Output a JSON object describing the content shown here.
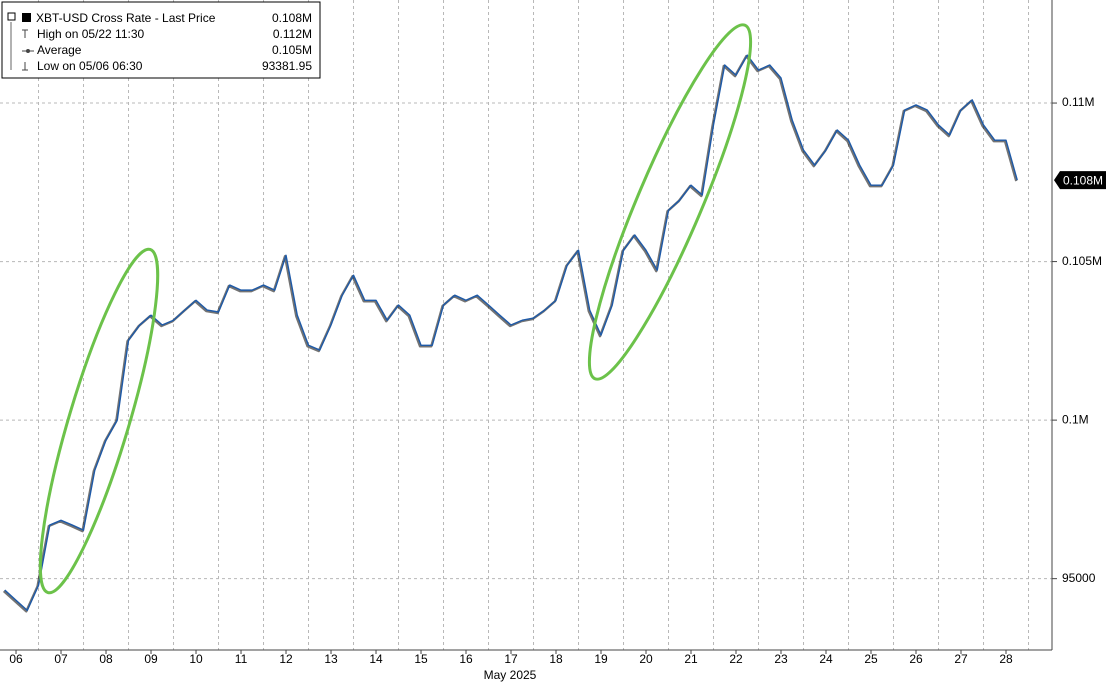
{
  "chart_data": {
    "type": "line",
    "x_label": "May 2025",
    "x": [
      6.25,
      6.5,
      6.75,
      7,
      7.25,
      7.5,
      7.75,
      8,
      8.25,
      8.5,
      8.75,
      9,
      9.25,
      9.5,
      9.75,
      10,
      10.25,
      10.5,
      10.75,
      11,
      11.25,
      11.5,
      11.75,
      12,
      12.25,
      12.5,
      12.75,
      13,
      13.25,
      13.5,
      13.75,
      14,
      14.25,
      14.5,
      14.75,
      15,
      15.25,
      15.5,
      15.75,
      16,
      16.25,
      16.5,
      16.75,
      17,
      17.25,
      17.5,
      17.75,
      18,
      18.25,
      18.5,
      18.75,
      19,
      19.25,
      19.5,
      19.75,
      20,
      20.25,
      20.5,
      20.75,
      21,
      21.25,
      21.5,
      21.75,
      22,
      22.25,
      22.5,
      22.75,
      23,
      23.25,
      23.5,
      23.75,
      24,
      24.25,
      24.5,
      24.75,
      25,
      25.25,
      25.5,
      25.75,
      26,
      26.25,
      26.5,
      26.75,
      27,
      27.25,
      27.5,
      27.75,
      28,
      28.25,
      28.5,
      28.75
    ],
    "series": [
      {
        "name": "XBT-USD Cross Rate - Last Price",
        "color": "#1e5aa8",
        "values": [
          94640,
          94320,
          94000,
          94790,
          96690,
          96840,
          96690,
          96530,
          98420,
          99370,
          100000,
          102520,
          103000,
          103310,
          103000,
          103150,
          103470,
          103780,
          103470,
          103410,
          104260,
          104100,
          104100,
          104260,
          104100,
          105200,
          103310,
          102360,
          102210,
          103000,
          103940,
          104570,
          103780,
          103780,
          103150,
          103630,
          103310,
          102360,
          102360,
          103630,
          103940,
          103780,
          103940,
          103630,
          103310,
          103000,
          103150,
          103220,
          103470,
          103780,
          104890,
          105360,
          103470,
          102680,
          103630,
          105360,
          105840,
          105360,
          104730,
          106620,
          106940,
          107410,
          107100,
          109310,
          111200,
          110880,
          111510,
          111040,
          111200,
          110790,
          109460,
          108520,
          108040,
          108520,
          109150,
          108830,
          108040,
          107410,
          107410,
          108040,
          109780,
          109940,
          109780,
          109310,
          108990,
          109780,
          110100,
          109310,
          108830,
          108830,
          107570
        ]
      }
    ],
    "stats": [
      {
        "label": "High on 05/22 11:30",
        "value": "0.112M"
      },
      {
        "label": "Average",
        "value": "0.105M"
      },
      {
        "label": "Low on 05/06 06:30",
        "value": 93381.95
      }
    ],
    "price_tag": {
      "value": 107570,
      "label": "0.108M"
    },
    "xlim": [
      6.144,
      29.522
    ],
    "xticks": [
      {
        "value": 6.5,
        "label": "06"
      },
      {
        "value": 7.5,
        "label": "07"
      },
      {
        "value": 8.5,
        "label": "08"
      },
      {
        "value": 9.5,
        "label": "09"
      },
      {
        "value": 10.5,
        "label": "10"
      },
      {
        "value": 11.5,
        "label": "11"
      },
      {
        "value": 12.5,
        "label": "12"
      },
      {
        "value": 13.5,
        "label": "13"
      },
      {
        "value": 14.5,
        "label": "14"
      },
      {
        "value": 15.5,
        "label": "15"
      },
      {
        "value": 16.5,
        "label": "16"
      },
      {
        "value": 17.5,
        "label": "17"
      },
      {
        "value": 18.5,
        "label": "18"
      },
      {
        "value": 19.5,
        "label": "19"
      },
      {
        "value": 20.5,
        "label": "20"
      },
      {
        "value": 21.5,
        "label": "21"
      },
      {
        "value": 22.5,
        "label": "22"
      },
      {
        "value": 23.5,
        "label": "23"
      },
      {
        "value": 24.5,
        "label": "24"
      },
      {
        "value": 25.5,
        "label": "25"
      },
      {
        "value": 26.5,
        "label": "26"
      },
      {
        "value": 27.5,
        "label": "27"
      },
      {
        "value": 28.5,
        "label": "28"
      }
    ],
    "ylim": [
      92750,
      113250
    ],
    "yticks": [
      95000,
      {
        "value": 100000,
        "label": "0.1M"
      },
      {
        "value": 105000,
        "label": "0.105M"
      },
      {
        "value": 110000,
        "label": "0.11M"
      }
    ],
    "grid": true
  }
}
